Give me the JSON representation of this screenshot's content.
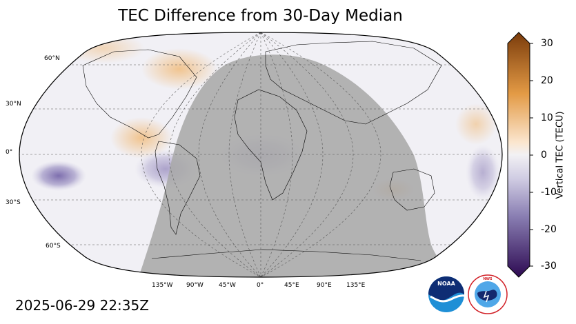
{
  "title": "TEC Difference from 30-Day Median",
  "timestamp": "2025-06-29 22:35Z",
  "latitude_labels": [
    "60°N",
    "30°N",
    "0°",
    "30°S",
    "60°S"
  ],
  "longitude_labels": [
    "135°W",
    "90°W",
    "45°W",
    "0°",
    "45°E",
    "90°E",
    "135°E"
  ],
  "colorbar": {
    "label": "Vertical TEC (TECU)",
    "ticks": [
      "30",
      "20",
      "10",
      "0",
      "-10",
      "-20",
      "-30"
    ],
    "min": -30,
    "max": 30,
    "colors": {
      "high": "#7a3b0b",
      "mid_high": "#e39a45",
      "neutral": "#f2f1f4",
      "mid_low": "#8a7fb3",
      "low": "#2d0a52"
    }
  },
  "map": {
    "projection": "Robinson",
    "night_shade_color": "#a9a9a9",
    "ocean_color": "#f1f0f5"
  },
  "logos": {
    "noaa": "NOAA",
    "nws": "NATIONAL WEATHER SERVICE"
  }
}
